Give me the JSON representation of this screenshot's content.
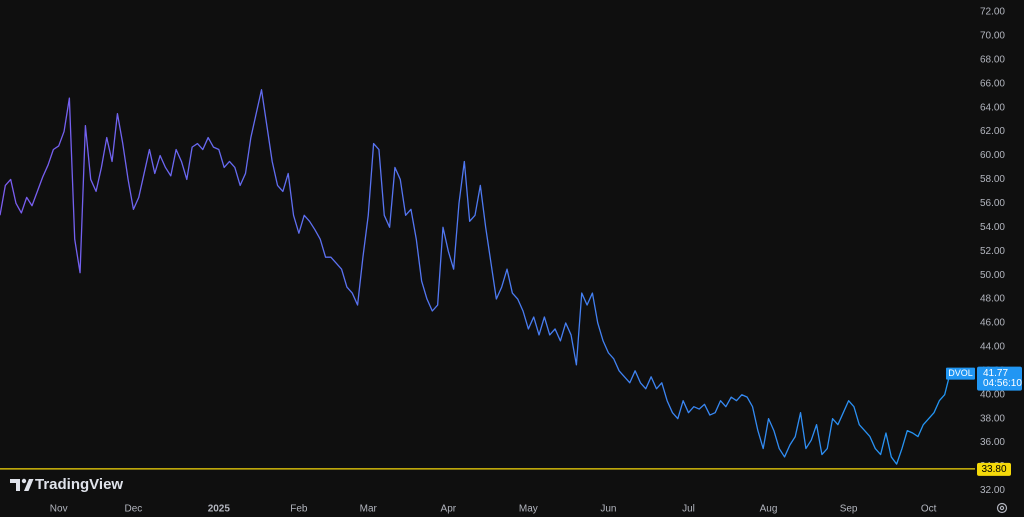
{
  "chart_data": {
    "type": "line",
    "watermark": "TradingView",
    "categories": [
      null,
      null,
      null,
      null,
      null,
      null,
      null,
      null,
      null,
      null,
      null,
      "Nov",
      null,
      null,
      null,
      null,
      null,
      null,
      null,
      null,
      null,
      null,
      null,
      null,
      null,
      "Dec",
      null,
      null,
      null,
      null,
      null,
      null,
      null,
      null,
      null,
      null,
      null,
      null,
      null,
      null,
      null,
      "2025",
      null,
      null,
      null,
      null,
      null,
      null,
      null,
      null,
      null,
      null,
      null,
      null,
      null,
      null,
      "Feb",
      null,
      null,
      null,
      null,
      null,
      null,
      null,
      null,
      null,
      null,
      null,
      null,
      "Mar",
      null,
      null,
      null,
      null,
      null,
      null,
      null,
      null,
      null,
      null,
      null,
      null,
      null,
      null,
      "Apr",
      null,
      null,
      null,
      null,
      null,
      null,
      null,
      null,
      null,
      null,
      null,
      null,
      null,
      null,
      "May",
      null,
      null,
      null,
      null,
      null,
      null,
      null,
      null,
      null,
      null,
      null,
      null,
      null,
      null,
      "Jun",
      null,
      null,
      null,
      null,
      null,
      null,
      null,
      null,
      null,
      null,
      null,
      null,
      null,
      null,
      "Jul",
      null,
      null,
      null,
      null,
      null,
      null,
      null,
      null,
      null,
      null,
      null,
      null,
      null,
      null,
      "Aug",
      null,
      null,
      null,
      null,
      null,
      null,
      null,
      null,
      null,
      null,
      null,
      null,
      null,
      null,
      "Sep",
      null,
      null,
      null,
      null,
      null,
      null,
      null,
      null,
      null,
      null,
      null,
      null,
      null,
      null,
      "Oct",
      null,
      null,
      null,
      null
    ],
    "series": [
      {
        "name": "DVOL",
        "gradient": [
          "#7b5cf0",
          "#2196f3"
        ],
        "label_color": "#2196f3",
        "values": [
          55.0,
          57.5,
          58.0,
          56.0,
          55.2,
          56.5,
          55.8,
          57.0,
          58.2,
          59.2,
          60.5,
          60.8,
          62.0,
          64.8,
          53.0,
          50.2,
          62.5,
          58.0,
          57.0,
          59.0,
          61.5,
          59.5,
          63.5,
          61.0,
          58.0,
          55.5,
          56.5,
          58.5,
          60.5,
          58.5,
          60.0,
          59.0,
          58.3,
          60.5,
          59.5,
          58.0,
          60.7,
          61.0,
          60.5,
          61.5,
          60.7,
          60.5,
          59.0,
          59.5,
          59.0,
          57.5,
          58.5,
          61.5,
          63.5,
          65.5,
          62.5,
          59.5,
          57.5,
          57.0,
          58.5,
          55.0,
          53.5,
          55.0,
          54.5,
          53.8,
          53.0,
          51.5,
          51.5,
          51.0,
          50.5,
          49.0,
          48.5,
          47.5,
          51.5,
          55.0,
          61.0,
          60.5,
          55.0,
          54.0,
          59.0,
          58.0,
          55.0,
          55.5,
          53.0,
          49.5,
          48.0,
          47.0,
          47.5,
          54.0,
          52.0,
          50.5,
          56.0,
          59.5,
          54.5,
          55.0,
          57.5,
          54.0,
          51.0,
          48.0,
          49.0,
          50.5,
          48.5,
          48.0,
          47.0,
          45.5,
          46.5,
          45.0,
          46.5,
          45.0,
          45.5,
          44.5,
          46.0,
          45.0,
          42.5,
          48.5,
          47.5,
          48.5,
          46.0,
          44.5,
          43.5,
          43.0,
          42.0,
          41.5,
          41.0,
          42.0,
          41.0,
          40.5,
          41.5,
          40.5,
          41.0,
          39.5,
          38.5,
          38.0,
          39.5,
          38.5,
          39.0,
          38.8,
          39.2,
          38.3,
          38.5,
          39.5,
          39.0,
          39.8,
          39.5,
          40.0,
          39.8,
          39.0,
          37.0,
          35.5,
          38.0,
          37.0,
          35.5,
          34.8,
          35.8,
          36.5,
          38.5,
          35.5,
          36.2,
          37.5,
          35.0,
          35.5,
          38.0,
          37.5,
          38.5,
          39.5,
          39.0,
          37.5,
          37.0,
          36.5,
          35.5,
          35.0,
          36.8,
          34.8,
          34.2,
          35.5,
          37.0,
          36.8,
          36.5,
          37.5,
          38.0,
          38.5,
          39.5,
          40.0,
          41.77
        ]
      }
    ],
    "countdown": "04:56:10",
    "hline": {
      "value": 33.8,
      "label": "33.80",
      "color": "#f5d90a"
    },
    "ylim": [
      31.2,
      73.0
    ],
    "yticks": [
      {
        "value": 32,
        "label": "32.00"
      },
      {
        "value": 34,
        "label": "34.00"
      },
      {
        "value": 36,
        "label": "36.00"
      },
      {
        "value": 38,
        "label": "38.00"
      },
      {
        "value": 40,
        "label": "40.00"
      },
      {
        "value": 42,
        "label": "42.00"
      },
      {
        "value": 44,
        "label": "44.00"
      },
      {
        "value": 46,
        "label": "46.00"
      },
      {
        "value": 48,
        "label": "48.00"
      },
      {
        "value": 50,
        "label": "50.00"
      },
      {
        "value": 52,
        "label": "52.00"
      },
      {
        "value": 54,
        "label": "54.00"
      },
      {
        "value": 56,
        "label": "56.00"
      },
      {
        "value": 58,
        "label": "58.00"
      },
      {
        "value": 60,
        "label": "60.00"
      },
      {
        "value": 62,
        "label": "62.00"
      },
      {
        "value": 64,
        "label": "64.00"
      },
      {
        "value": 66,
        "label": "66.00"
      },
      {
        "value": 68,
        "label": "68.00"
      },
      {
        "value": 70,
        "label": "70.00"
      },
      {
        "value": 72,
        "label": "72.00"
      }
    ],
    "grid": false
  }
}
